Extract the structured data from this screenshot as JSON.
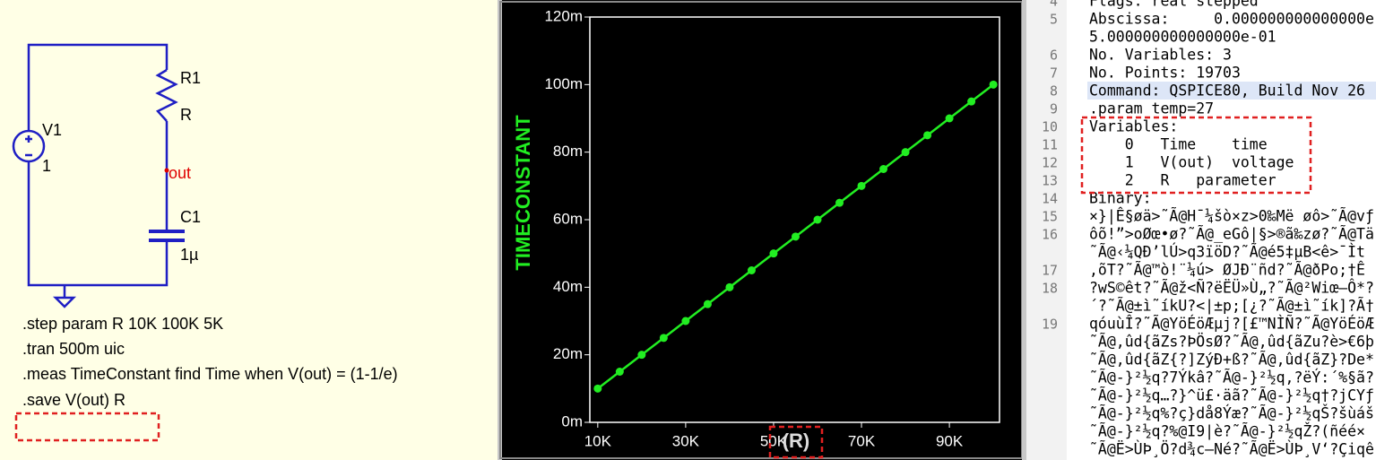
{
  "schematic": {
    "labels": {
      "r_name": "R1",
      "r_value": "R",
      "v_name": "V1",
      "v_value": "1",
      "net": "out",
      "c_name": "C1",
      "c_value": "1µ"
    },
    "directives": [
      ".step param R 10K 100K 5K",
      ".tran 500m uic",
      ".meas TimeConstant find Time when V(out) = (1-1/e)",
      ".save V(out) R"
    ]
  },
  "chart_data": {
    "type": "line",
    "ylabel": "TIMECONSTANT",
    "xlabel": "(R)",
    "x": [
      10000,
      15000,
      20000,
      25000,
      30000,
      35000,
      40000,
      45000,
      50000,
      55000,
      60000,
      65000,
      70000,
      75000,
      80000,
      85000,
      90000,
      95000,
      100000
    ],
    "series": [
      {
        "color": "#22ee22",
        "values": [
          10,
          15,
          20,
          25,
          30,
          35,
          40,
          45,
          50,
          55,
          60,
          65,
          70,
          75,
          80,
          85,
          90,
          95,
          100
        ]
      }
    ],
    "xlim": [
      8200,
      101400
    ],
    "ylim": [
      0,
      120
    ],
    "xticks": [
      {
        "value": 10000,
        "label": "10K"
      },
      {
        "value": 30000,
        "label": "30K"
      },
      {
        "value": 50000,
        "label": "50K"
      },
      {
        "value": 70000,
        "label": "70K"
      },
      {
        "value": 90000,
        "label": "90K"
      }
    ],
    "yticks": [
      {
        "value": 0,
        "label": "0m"
      },
      {
        "value": 20,
        "label": "20m"
      },
      {
        "value": 40,
        "label": "40m"
      },
      {
        "value": 60,
        "label": "60m"
      },
      {
        "value": 80,
        "label": "80m"
      },
      {
        "value": 100,
        "label": "100m"
      },
      {
        "value": 120,
        "label": "120m"
      }
    ],
    "markers": true
  },
  "editor": {
    "rows": [
      {
        "num": "4",
        "text": "Flags: real stepped"
      },
      {
        "num": "5",
        "text": "Abscissa:     0.000000000000000e"
      },
      {
        "num": null,
        "text": "5.000000000000000e-01"
      },
      {
        "num": "6",
        "text": "No. Variables: 3"
      },
      {
        "num": "7",
        "text": "No. Points: 19703"
      },
      {
        "num": "8",
        "text": "Command: QSPICE80, Build Nov 26"
      },
      {
        "num": "9",
        "text": ".param temp=27"
      },
      {
        "num": "10",
        "text": "Variables:"
      },
      {
        "num": "11",
        "text": "    0   Time    time"
      },
      {
        "num": "12",
        "text": "    1   V(out)  voltage"
      },
      {
        "num": "13",
        "text": "    2   R   parameter"
      },
      {
        "num": "14",
        "text": "Binary:"
      },
      {
        "num": "15",
        "text": "×}|Ê§øä>˜Ã@H¯¼šò×z>0‰Më øô>˜Ã@vƒ"
      },
      {
        "num": "16",
        "text": "ôõ!”>oØœ•ø?˜Ã@_eGô|§>®ã‰zø?˜Ã@Tä"
      },
      {
        "num": null,
        "text": "˜Ã@‹¼QÐ’lÚ>q3ïöD?˜Ã@é5‡µB<ê>¯Ìt"
      },
      {
        "num": "17",
        "text": ",õT?˜Ã@™ò!¨¼ú> ØJÐ¨ñd?˜Ã@ðPo;†Ê"
      },
      {
        "num": "18",
        "text": "?wS©êt?˜Ã@ž<Ñ?ëËÜ»Ù„?˜Ã@²Wiœ—Ô*?"
      },
      {
        "num": null,
        "text": "´?˜Ã@±ì˜íkU?<|±p;[¿?˜Ã@±ì˜ík]?Ã†"
      },
      {
        "num": "19",
        "text": "qóuùÎ?˜Ã@YöÉöÆµj?[£™NÌÑ?˜Ã@YöÉöÆ"
      },
      {
        "num": null,
        "text": "˜Ã@,ûd{ãZs?ÞÖsØ?˜Ã@,ûd{ãZu?è>€6þ"
      },
      {
        "num": null,
        "text": "˜Ã@,ûd{ãZ{?]ZýÐ+ß?˜Ã@,ûd{ãZ}?De*"
      },
      {
        "num": null,
        "text": "˜Ã@-}²½q?7Ýkâ?˜Ã@-}²½q,?ëÝ:´%§ã?"
      },
      {
        "num": null,
        "text": "˜Ã@-}²½q…?}^ü£·äã?˜Ã@-}²½q†?jCYƒ"
      },
      {
        "num": null,
        "text": "˜Ã@-}²½q%?ç}då8Ýæ?˜Ã@-}²½qŠ?šùáš"
      },
      {
        "num": null,
        "text": "˜Ã@-}²½q?%@I9|è?˜Ã@-}²½qŽ?(ñéé×"
      },
      {
        "num": null,
        "text": "˜Ã@Ë>ÙÞ¸Ö?d¾c—Né?˜Ã@Ë>ÙÞ¸V‘?Çiqê"
      }
    ]
  }
}
